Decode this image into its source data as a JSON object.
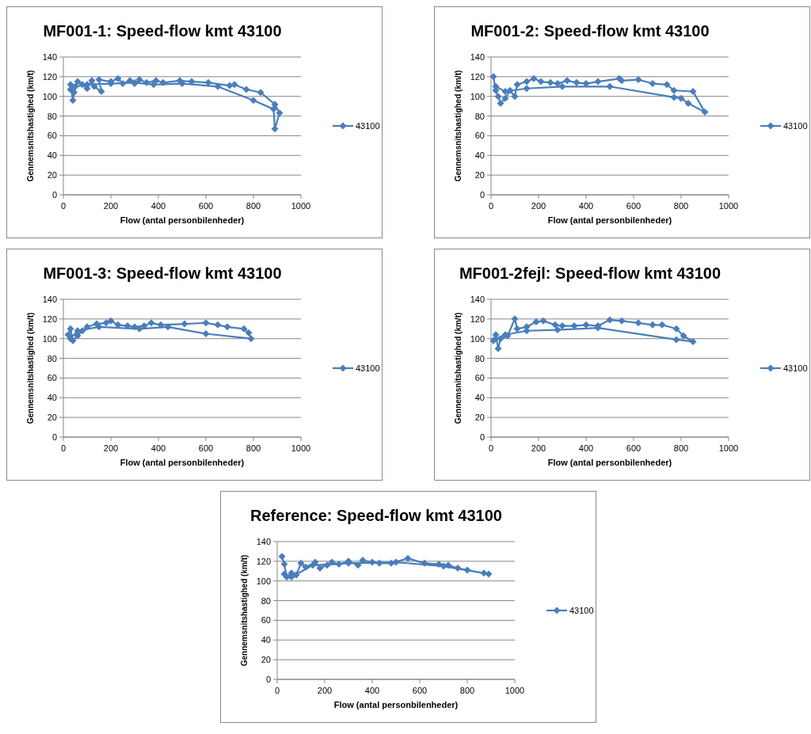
{
  "chart_data": [
    {
      "type": "line",
      "title": "MF001-1: Speed-flow kmt 43100",
      "xlabel": "Flow (antal personbilenheder)",
      "ylabel": "Gennemsnitshastighed (km/t)",
      "xlim": [
        0,
        1000
      ],
      "xticks": [
        0,
        200,
        400,
        600,
        800,
        1000
      ],
      "ylim": [
        0,
        140
      ],
      "yticks": [
        0,
        20,
        40,
        60,
        80,
        100,
        120,
        140
      ],
      "grid": "y",
      "legend": "right",
      "marker": "diamond",
      "line_style": "solid",
      "series": [
        {
          "name": "43100",
          "color": "#4a7ebb",
          "x": [
            30,
            40,
            45,
            60,
            80,
            100,
            120,
            130,
            160,
            150,
            200,
            230,
            250,
            280,
            300,
            320,
            350,
            390,
            420,
            490,
            540,
            610,
            700,
            720,
            770,
            830,
            890,
            910,
            890,
            885,
            800,
            650,
            500,
            380,
            300,
            200,
            100,
            50,
            30
          ],
          "values": [
            112,
            96,
            104,
            115,
            112,
            108,
            116,
            110,
            105,
            117,
            115,
            118,
            113,
            116,
            113,
            117,
            114,
            116,
            114,
            116,
            115,
            114,
            111,
            112,
            107,
            104,
            92,
            83,
            67,
            87,
            96,
            110,
            113,
            112,
            114,
            113,
            112,
            110,
            107
          ]
        }
      ]
    },
    {
      "type": "line",
      "title": "MF001-2: Speed-flow kmt 43100",
      "xlabel": "Flow (antal personbilenheder)",
      "ylabel": "Gennemsnitshastighed (km/t)",
      "xlim": [
        0,
        1000
      ],
      "xticks": [
        0,
        200,
        400,
        600,
        800,
        1000
      ],
      "ylim": [
        0,
        140
      ],
      "yticks": [
        0,
        20,
        40,
        60,
        80,
        100,
        120,
        140
      ],
      "grid": "y",
      "legend": "right",
      "marker": "diamond",
      "line_style": "solid",
      "series": [
        {
          "name": "43100",
          "color": "#4a7ebb",
          "x": [
            10,
            20,
            30,
            40,
            60,
            80,
            100,
            110,
            150,
            180,
            210,
            250,
            280,
            320,
            360,
            400,
            450,
            540,
            550,
            620,
            680,
            740,
            770,
            850,
            900,
            830,
            800,
            770,
            500,
            300,
            150,
            60,
            20
          ],
          "values": [
            120,
            106,
            100,
            93,
            98,
            106,
            100,
            112,
            115,
            118,
            115,
            114,
            113,
            116,
            114,
            113,
            115,
            118,
            116,
            117,
            113,
            112,
            106,
            105,
            84,
            93,
            98,
            99,
            110,
            110,
            108,
            105,
            110
          ]
        }
      ]
    },
    {
      "type": "line",
      "title": "MF001-3: Speed-flow kmt 43100",
      "xlabel": "Flow (antal personbilenheder)",
      "ylabel": "Gennemsnitshastighed (km/t)",
      "xlim": [
        0,
        1000
      ],
      "xticks": [
        0,
        200,
        400,
        600,
        800,
        1000
      ],
      "ylim": [
        0,
        140
      ],
      "yticks": [
        0,
        20,
        40,
        60,
        80,
        100,
        120,
        140
      ],
      "grid": "y",
      "legend": "right",
      "marker": "diamond",
      "line_style": "solid",
      "series": [
        {
          "name": "43100",
          "color": "#4a7ebb",
          "x": [
            20,
            30,
            40,
            60,
            80,
            100,
            140,
            180,
            200,
            230,
            270,
            300,
            340,
            370,
            410,
            510,
            600,
            650,
            690,
            760,
            780,
            790,
            600,
            440,
            320,
            150,
            60,
            30
          ],
          "values": [
            104,
            110,
            98,
            103,
            108,
            112,
            115,
            116,
            118,
            114,
            113,
            112,
            113,
            116,
            114,
            115,
            116,
            114,
            112,
            110,
            106,
            100,
            105,
            112,
            110,
            112,
            108,
            100
          ]
        }
      ]
    },
    {
      "type": "line",
      "title": "MF001-2fejl: Speed-flow kmt 43100",
      "xlabel": "Flow (antal personbilenheder)",
      "ylabel": "Gennemsnitshastighed (km/t)",
      "xlim": [
        0,
        1000
      ],
      "xticks": [
        0,
        200,
        400,
        600,
        800,
        1000
      ],
      "ylim": [
        0,
        140
      ],
      "yticks": [
        0,
        20,
        40,
        60,
        80,
        100,
        120,
        140
      ],
      "grid": "y",
      "legend": "right",
      "marker": "diamond",
      "line_style": "solid",
      "series": [
        {
          "name": "43100",
          "color": "#4a7ebb",
          "x": [
            10,
            20,
            30,
            40,
            70,
            100,
            110,
            150,
            190,
            220,
            270,
            300,
            350,
            400,
            450,
            500,
            550,
            620,
            680,
            720,
            780,
            810,
            850,
            780,
            450,
            280,
            150,
            60,
            20
          ],
          "values": [
            98,
            104,
            90,
            100,
            103,
            120,
            110,
            112,
            117,
            118,
            114,
            113,
            113,
            114,
            113,
            119,
            118,
            116,
            114,
            114,
            110,
            103,
            97,
            99,
            111,
            109,
            108,
            104,
            100
          ]
        }
      ]
    },
    {
      "type": "line",
      "title": "Reference: Speed-flow kmt 43100",
      "xlabel": "Flow (antal personbilenheder)",
      "ylabel": "Gennemsnitshastighed (km/t)",
      "xlim": [
        0,
        1000
      ],
      "xticks": [
        0,
        200,
        400,
        600,
        800,
        1000
      ],
      "ylim": [
        0,
        140
      ],
      "yticks": [
        0,
        20,
        40,
        60,
        80,
        100,
        120,
        140
      ],
      "grid": "y",
      "legend": "right",
      "marker": "diamond",
      "line_style": "solid",
      "series": [
        {
          "name": "43100",
          "color": "#4a7ebb",
          "x": [
            20,
            30,
            40,
            60,
            80,
            100,
            120,
            160,
            180,
            210,
            230,
            260,
            300,
            340,
            360,
            400,
            430,
            480,
            550,
            620,
            680,
            720,
            760,
            800,
            870,
            890,
            700,
            500,
            300,
            150,
            60,
            30
          ],
          "values": [
            125,
            117,
            104,
            108,
            106,
            118,
            114,
            119,
            113,
            116,
            119,
            117,
            120,
            116,
            121,
            119,
            118,
            118,
            123,
            118,
            117,
            116,
            113,
            111,
            108,
            107,
            115,
            119,
            118,
            116,
            104,
            107
          ]
        }
      ]
    }
  ]
}
